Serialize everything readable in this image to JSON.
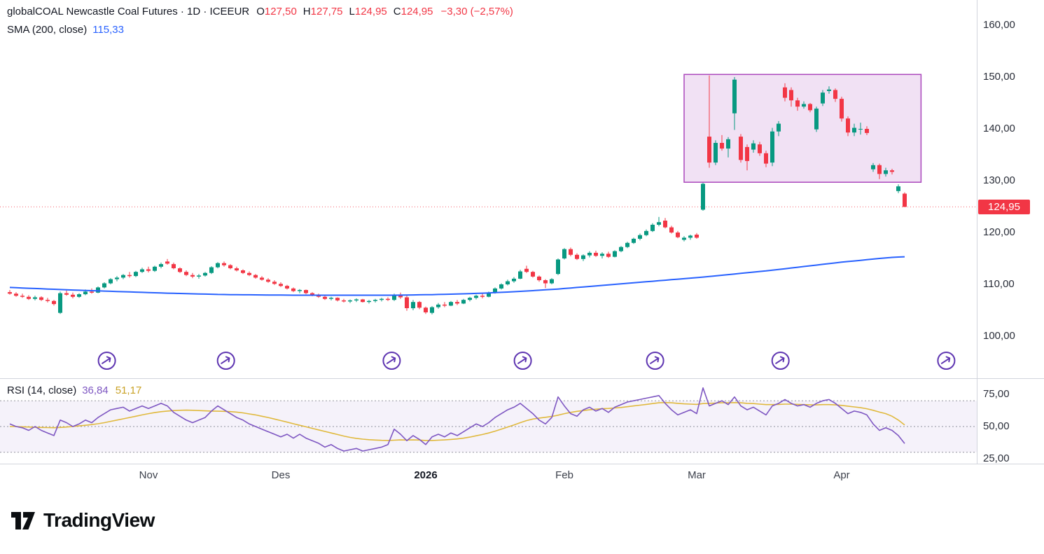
{
  "header": {
    "symbol_line": {
      "name": "globalCOAL Newcastle Coal Futures · 1D · ICEEUR",
      "o_label": "O",
      "o": "127,50",
      "h_label": "H",
      "h": "127,75",
      "l_label": "L",
      "l": "124,95",
      "c_label": "C",
      "c": "124,95",
      "change": "−3,30 (−2,57%)"
    },
    "sma_line": {
      "label": "SMA (200, close)",
      "value": "115,33"
    }
  },
  "rsi_header": {
    "label": "RSI (14, close)",
    "value": "36,84",
    "ma_value": "51,17"
  },
  "branding": {
    "name": "TradingView"
  },
  "colors": {
    "up": "#089981",
    "down": "#f23645",
    "sma": "#2962ff",
    "rsi_line": "#7e57c2",
    "rsi_ma": "#e0b93d",
    "rsi_band_fill": "rgba(126,87,194,0.08)",
    "rsi_level_line": "#787b86",
    "box_border": "#ab47bc",
    "box_fill": "rgba(171,71,188,0.16)",
    "marker": "#5e35b1",
    "last_price_line": "#f23645",
    "separator": "#d1d4dc"
  },
  "chart_data": {
    "type": "candlestick",
    "title": "globalCOAL Newcastle Coal Futures",
    "interval": "1D",
    "exchange": "ICEEUR",
    "last_ohlc": {
      "open": 127.5,
      "high": 127.75,
      "low": 124.95,
      "close": 124.95,
      "change": -3.3,
      "change_pct": -2.57
    },
    "price_axis": {
      "min": 100,
      "max": 160,
      "ticks": [
        160,
        150,
        140,
        130,
        120,
        110,
        100
      ],
      "last_price": 124.95
    },
    "time_axis_labels": [
      {
        "text": "Nov",
        "index": 22,
        "bold": false
      },
      {
        "text": "Des",
        "index": 43,
        "bold": false
      },
      {
        "text": "2026",
        "index": 66,
        "bold": true
      },
      {
        "text": "Feb",
        "index": 88,
        "bold": false
      },
      {
        "text": "Mar",
        "index": 109,
        "bold": false
      },
      {
        "text": "Apr",
        "index": 132,
        "bold": false
      }
    ],
    "candles": [
      [
        108.5,
        108.9,
        108.0,
        108.2
      ],
      [
        108.2,
        108.5,
        107.6,
        107.8
      ],
      [
        107.8,
        108.2,
        107.4,
        107.6
      ],
      [
        107.6,
        107.9,
        107.0,
        107.2
      ],
      [
        107.2,
        107.8,
        106.9,
        107.5
      ],
      [
        107.5,
        107.7,
        106.8,
        107.0
      ],
      [
        107.0,
        107.4,
        106.5,
        106.8
      ],
      [
        106.8,
        107.0,
        105.9,
        106.2
      ],
      [
        104.5,
        108.6,
        104.3,
        108.3
      ],
      [
        108.3,
        108.8,
        107.8,
        108.0
      ],
      [
        108.0,
        108.4,
        107.3,
        107.6
      ],
      [
        107.6,
        108.3,
        107.4,
        108.1
      ],
      [
        108.1,
        109.0,
        107.9,
        108.6
      ],
      [
        108.6,
        109.2,
        108.2,
        108.4
      ],
      [
        108.4,
        109.6,
        108.3,
        109.4
      ],
      [
        109.4,
        110.4,
        109.2,
        110.2
      ],
      [
        110.2,
        111.2,
        110.0,
        111.0
      ],
      [
        111.0,
        111.6,
        110.6,
        111.3
      ],
      [
        111.3,
        112.0,
        111.0,
        111.8
      ],
      [
        111.8,
        112.4,
        111.3,
        111.6
      ],
      [
        111.6,
        112.6,
        111.4,
        112.4
      ],
      [
        112.4,
        113.2,
        112.2,
        112.9
      ],
      [
        112.9,
        113.4,
        112.3,
        112.6
      ],
      [
        112.6,
        113.6,
        112.4,
        113.4
      ],
      [
        113.4,
        114.2,
        113.1,
        113.9
      ],
      [
        114.4,
        114.9,
        113.8,
        114.0
      ],
      [
        113.9,
        114.2,
        112.9,
        113.1
      ],
      [
        113.1,
        113.3,
        112.2,
        112.4
      ],
      [
        112.4,
        112.7,
        111.6,
        111.8
      ],
      [
        111.8,
        112.2,
        111.2,
        111.5
      ],
      [
        111.5,
        112.0,
        111.1,
        111.7
      ],
      [
        111.7,
        112.4,
        111.5,
        112.2
      ],
      [
        112.2,
        113.5,
        112.0,
        113.3
      ],
      [
        113.3,
        114.3,
        113.1,
        114.1
      ],
      [
        114.1,
        114.4,
        113.4,
        113.7
      ],
      [
        113.7,
        113.9,
        112.9,
        113.1
      ],
      [
        113.1,
        113.4,
        112.5,
        112.7
      ],
      [
        112.7,
        112.9,
        112.0,
        112.2
      ],
      [
        112.2,
        112.5,
        111.6,
        111.8
      ],
      [
        111.8,
        112.0,
        111.1,
        111.3
      ],
      [
        111.3,
        111.6,
        110.7,
        110.9
      ],
      [
        110.9,
        111.2,
        110.3,
        110.5
      ],
      [
        110.5,
        110.8,
        109.9,
        110.1
      ],
      [
        110.1,
        110.4,
        109.5,
        109.7
      ],
      [
        109.7,
        109.9,
        109.0,
        109.2
      ],
      [
        109.2,
        109.4,
        108.5,
        108.7
      ],
      [
        108.7,
        109.1,
        108.3,
        108.9
      ],
      [
        108.9,
        109.0,
        108.1,
        108.3
      ],
      [
        108.3,
        108.5,
        107.7,
        107.9
      ],
      [
        107.9,
        108.2,
        107.4,
        107.6
      ],
      [
        107.6,
        107.8,
        107.0,
        107.2
      ],
      [
        107.2,
        107.6,
        106.9,
        107.4
      ],
      [
        107.4,
        107.5,
        106.7,
        106.9
      ],
      [
        106.9,
        107.2,
        106.5,
        106.7
      ],
      [
        106.7,
        107.1,
        106.4,
        106.9
      ],
      [
        106.9,
        107.3,
        106.6,
        107.1
      ],
      [
        107.1,
        107.2,
        106.5,
        106.6
      ],
      [
        106.6,
        107.0,
        106.3,
        106.8
      ],
      [
        106.8,
        107.2,
        106.5,
        107.0
      ],
      [
        107.0,
        107.4,
        106.7,
        107.2
      ],
      [
        107.2,
        107.5,
        106.8,
        107.0
      ],
      [
        107.0,
        108.2,
        106.8,
        108.0
      ],
      [
        108.0,
        108.4,
        107.2,
        107.5
      ],
      [
        107.5,
        108.0,
        104.9,
        105.4
      ],
      [
        105.4,
        107.0,
        105.0,
        106.6
      ],
      [
        106.6,
        106.8,
        105.2,
        105.5
      ],
      [
        105.5,
        105.7,
        104.3,
        104.6
      ],
      [
        104.5,
        105.8,
        104.2,
        105.6
      ],
      [
        105.6,
        106.4,
        105.3,
        106.1
      ],
      [
        106.1,
        106.6,
        105.6,
        105.9
      ],
      [
        105.9,
        106.8,
        105.8,
        106.6
      ],
      [
        106.6,
        107.0,
        106.0,
        106.3
      ],
      [
        106.3,
        107.2,
        106.2,
        107.0
      ],
      [
        107.0,
        107.6,
        106.7,
        107.4
      ],
      [
        107.4,
        108.0,
        107.1,
        107.8
      ],
      [
        107.8,
        108.2,
        107.3,
        107.6
      ],
      [
        107.6,
        108.6,
        107.5,
        108.4
      ],
      [
        108.4,
        109.4,
        108.2,
        109.2
      ],
      [
        109.2,
        110.2,
        109.0,
        110.0
      ],
      [
        110.0,
        110.9,
        109.8,
        110.6
      ],
      [
        110.6,
        111.4,
        110.3,
        111.1
      ],
      [
        111.1,
        112.8,
        111.0,
        112.5
      ],
      [
        113.0,
        113.6,
        112.2,
        112.4
      ],
      [
        112.4,
        112.6,
        111.3,
        111.5
      ],
      [
        111.5,
        111.7,
        110.5,
        110.8
      ],
      [
        110.8,
        111.0,
        109.3,
        110.2
      ],
      [
        110.2,
        111.2,
        110.0,
        111.0
      ],
      [
        112.0,
        115.0,
        111.8,
        114.8
      ],
      [
        115.0,
        117.0,
        114.8,
        116.8
      ],
      [
        116.8,
        117.1,
        115.4,
        115.7
      ],
      [
        115.7,
        116.0,
        114.7,
        114.9
      ],
      [
        114.9,
        115.8,
        114.5,
        115.6
      ],
      [
        115.6,
        116.4,
        115.2,
        116.1
      ],
      [
        116.1,
        116.5,
        115.3,
        115.5
      ],
      [
        115.5,
        116.2,
        115.0,
        115.9
      ],
      [
        115.9,
        116.3,
        115.1,
        115.3
      ],
      [
        115.3,
        116.6,
        115.2,
        116.4
      ],
      [
        116.4,
        117.4,
        116.2,
        117.2
      ],
      [
        117.2,
        118.2,
        117.0,
        118.0
      ],
      [
        118.0,
        119.0,
        117.8,
        118.8
      ],
      [
        118.8,
        119.8,
        118.5,
        119.5
      ],
      [
        119.5,
        120.6,
        119.3,
        120.3
      ],
      [
        120.3,
        121.8,
        120.1,
        121.5
      ],
      [
        121.5,
        123.0,
        121.2,
        122.0
      ],
      [
        122.3,
        122.8,
        120.8,
        121.0
      ],
      [
        121.0,
        121.3,
        119.8,
        120.0
      ],
      [
        120.0,
        120.3,
        118.9,
        119.1
      ],
      [
        118.6,
        119.3,
        118.3,
        119.0
      ],
      [
        119.0,
        119.6,
        118.6,
        119.4
      ],
      [
        119.6,
        119.9,
        118.8,
        119.0
      ],
      [
        124.4,
        129.6,
        124.2,
        129.4
      ],
      [
        138.5,
        150.3,
        132.5,
        133.5
      ],
      [
        133.5,
        137.8,
        133.0,
        137.3
      ],
      [
        137.3,
        138.8,
        135.8,
        136.2
      ],
      [
        136.2,
        138.4,
        134.5,
        138.0
      ],
      [
        143.0,
        150.0,
        139.8,
        149.5
      ],
      [
        138.5,
        139.0,
        133.5,
        134.0
      ],
      [
        136.5,
        137.0,
        132.0,
        133.8
      ],
      [
        136.0,
        137.8,
        135.4,
        137.2
      ],
      [
        137.0,
        137.5,
        134.8,
        135.3
      ],
      [
        135.3,
        135.8,
        132.6,
        133.3
      ],
      [
        133.5,
        140.2,
        132.8,
        139.5
      ],
      [
        139.5,
        141.5,
        138.6,
        141.0
      ],
      [
        148.0,
        148.8,
        145.3,
        146.0
      ],
      [
        147.5,
        148.0,
        144.3,
        145.5
      ],
      [
        145.5,
        146.0,
        143.5,
        144.3
      ],
      [
        144.3,
        145.3,
        143.9,
        144.8
      ],
      [
        144.8,
        145.0,
        143.2,
        143.6
      ],
      [
        139.9,
        144.3,
        139.4,
        143.9
      ],
      [
        144.9,
        147.5,
        144.4,
        147.0
      ],
      [
        147.3,
        148.2,
        146.8,
        147.6
      ],
      [
        147.5,
        147.8,
        145.2,
        145.8
      ],
      [
        145.8,
        146.2,
        141.4,
        142.0
      ],
      [
        142.0,
        142.4,
        138.6,
        139.3
      ],
      [
        139.3,
        141.0,
        138.6,
        140.2
      ],
      [
        140.0,
        141.2,
        138.9,
        140.0
      ],
      [
        140.0,
        140.5,
        138.8,
        139.2
      ],
      [
        132.2,
        133.4,
        131.7,
        133.0
      ],
      [
        133.0,
        133.3,
        130.3,
        131.3
      ],
      [
        131.3,
        132.5,
        130.8,
        132.0
      ],
      [
        132.0,
        132.3,
        131.2,
        131.7
      ],
      [
        128.0,
        129.3,
        127.6,
        128.9
      ],
      [
        127.5,
        127.75,
        124.95,
        124.95
      ]
    ],
    "overlays": {
      "sma200": {
        "name": "SMA (200, close)",
        "last_value": 115.33,
        "values": [
          109.4,
          109.35,
          109.3,
          109.25,
          109.2,
          109.15,
          109.1,
          109.05,
          109.0,
          108.95,
          108.9,
          108.86,
          108.82,
          108.78,
          108.74,
          108.7,
          108.66,
          108.62,
          108.58,
          108.54,
          108.5,
          108.46,
          108.42,
          108.38,
          108.34,
          108.3,
          108.27,
          108.24,
          108.21,
          108.18,
          108.15,
          108.12,
          108.09,
          108.06,
          108.04,
          108.02,
          108.0,
          107.99,
          107.98,
          107.97,
          107.96,
          107.95,
          107.94,
          107.93,
          107.92,
          107.91,
          107.9,
          107.9,
          107.9,
          107.9,
          107.9,
          107.9,
          107.9,
          107.9,
          107.9,
          107.9,
          107.9,
          107.9,
          107.9,
          107.9,
          107.9,
          107.9,
          107.92,
          107.94,
          107.96,
          107.98,
          108.0,
          108.02,
          108.05,
          108.08,
          108.11,
          108.14,
          108.18,
          108.22,
          108.26,
          108.3,
          108.35,
          108.4,
          108.46,
          108.52,
          108.58,
          108.65,
          108.72,
          108.79,
          108.86,
          108.94,
          109.02,
          109.1,
          109.2,
          109.3,
          109.4,
          109.5,
          109.6,
          109.7,
          109.8,
          109.9,
          110.0,
          110.1,
          110.2,
          110.3,
          110.4,
          110.5,
          110.6,
          110.7,
          110.8,
          110.9,
          111.0,
          111.1,
          111.2,
          111.3,
          111.4,
          111.52,
          111.64,
          111.76,
          111.88,
          112.0,
          112.12,
          112.24,
          112.36,
          112.48,
          112.6,
          112.74,
          112.88,
          113.02,
          113.16,
          113.3,
          113.44,
          113.58,
          113.72,
          113.86,
          114.0,
          114.14,
          114.28,
          114.4,
          114.52,
          114.64,
          114.76,
          114.88,
          115.0,
          115.1,
          115.2,
          115.27,
          115.33
        ]
      }
    },
    "highlight_box": {
      "start_index": 107.0,
      "end_index": 144.6,
      "price_top": 150.5,
      "price_bottom": 129.7
    },
    "event_markers": {
      "indices": [
        15.4,
        34.3,
        60.6,
        81.4,
        102.4,
        122.3,
        148.6
      ]
    },
    "rsi": {
      "name": "RSI (14, close)",
      "last_value": 36.84,
      "ma_last_value": 51.17,
      "ticks": [
        75,
        50,
        25
      ],
      "band": [
        30,
        70
      ],
      "values": [
        52,
        50,
        49,
        47,
        50,
        47,
        45,
        43,
        55,
        53,
        50,
        52,
        55,
        53,
        57,
        60,
        63,
        64,
        65,
        62,
        64,
        66,
        64,
        66,
        68,
        66,
        61,
        58,
        55,
        53,
        55,
        57,
        62,
        66,
        63,
        60,
        57,
        55,
        52,
        50,
        48,
        46,
        44,
        42,
        44,
        41,
        44,
        41,
        39,
        37,
        34,
        36,
        33,
        31,
        32,
        33,
        31,
        32,
        33,
        34,
        36,
        48,
        44,
        39,
        43,
        40,
        36,
        42,
        44,
        42,
        45,
        43,
        46,
        49,
        52,
        50,
        53,
        57,
        60,
        63,
        65,
        68,
        64,
        60,
        55,
        52,
        57,
        73,
        66,
        60,
        58,
        63,
        65,
        62,
        64,
        61,
        65,
        67,
        69,
        70,
        71,
        72,
        73,
        74,
        68,
        63,
        59,
        61,
        63,
        60,
        80,
        66,
        68,
        70,
        67,
        73,
        66,
        63,
        65,
        62,
        59,
        66,
        68,
        71,
        68,
        66,
        67,
        65,
        68,
        70,
        71,
        68,
        64,
        60,
        62,
        61,
        59,
        52,
        47,
        49,
        47,
        43,
        36.84
      ],
      "ma_values": [
        50,
        50,
        49.8,
        49.6,
        49.4,
        49.3,
        49.2,
        49.1,
        49.3,
        49.6,
        50,
        50.5,
        51,
        51.5,
        52.2,
        53,
        54,
        55,
        56,
        57,
        58,
        59,
        60,
        60.8,
        61.5,
        62,
        62.4,
        62.6,
        62.7,
        62.6,
        62.4,
        62.2,
        62,
        61.9,
        61.8,
        61.6,
        61.2,
        60.6,
        59.8,
        59,
        58,
        57,
        55.8,
        54.6,
        53.4,
        52.2,
        51,
        49.8,
        48.6,
        47.4,
        46.2,
        45,
        43.8,
        42.6,
        41.6,
        40.8,
        40.2,
        39.8,
        39.5,
        39.3,
        39.2,
        39.4,
        39.6,
        39.5,
        39.6,
        39.5,
        39.2,
        39.2,
        39.4,
        39.6,
        40,
        40.4,
        41,
        41.8,
        42.8,
        43.8,
        45,
        46.4,
        48,
        49.6,
        51.2,
        53,
        54.6,
        55.8,
        56.6,
        57.2,
        57.8,
        58.8,
        60,
        61,
        61.8,
        62.4,
        63,
        63.4,
        63.8,
        64,
        64.4,
        64.8,
        65.4,
        66,
        66.6,
        67.2,
        67.8,
        68.4,
        68.6,
        68.4,
        68,
        67.6,
        67.4,
        67.2,
        67.8,
        68,
        68.2,
        68.4,
        68.4,
        68.6,
        68.4,
        68,
        67.8,
        67.4,
        67,
        67,
        67.2,
        67.4,
        67.4,
        67.2,
        67,
        66.8,
        66.8,
        67,
        67,
        66.8,
        66.4,
        65.8,
        65.2,
        64.6,
        63.8,
        62.6,
        61.2,
        60,
        58,
        55,
        51.17
      ]
    }
  }
}
